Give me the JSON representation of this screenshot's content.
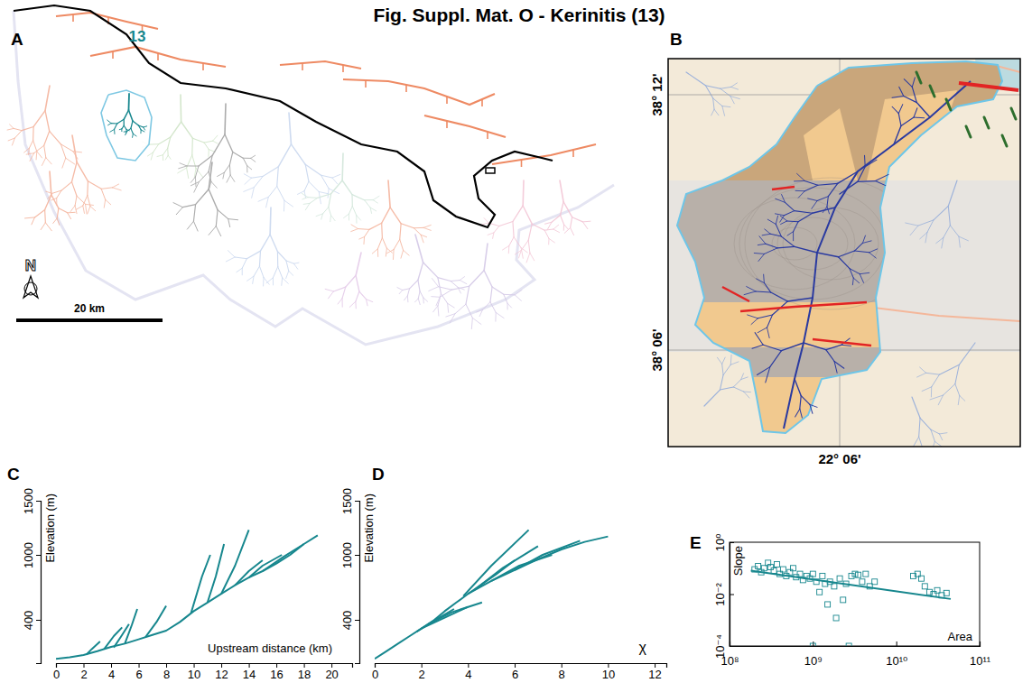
{
  "title": "Fig. Suppl. Mat. O - Kerinitis (13)",
  "chart_data": [
    {
      "type": "map",
      "panel_label": "A",
      "labels": {
        "basin": "13",
        "north": "N",
        "scale_bar": "20 km"
      }
    },
    {
      "type": "map",
      "panel_label": "B",
      "latitude_labels": [
        "38° 12'",
        "38° 06'"
      ],
      "longitude_labels": [
        "22° 06'"
      ]
    },
    {
      "type": "line",
      "panel_label": "C",
      "x_label": "Upstream distance (km)",
      "y_label": "Elevation (m)",
      "color": "#17878e",
      "xlim": [
        0,
        21.5
      ],
      "xticks": [
        0,
        2,
        4,
        6,
        8,
        10,
        12,
        14,
        16,
        18,
        20
      ],
      "ylim": [
        0,
        1500
      ],
      "yticks": [
        400,
        1000,
        1500
      ],
      "series": [
        {
          "x": [
            0,
            1,
            2,
            3,
            4,
            5,
            6,
            7,
            8,
            9,
            10,
            11,
            12,
            13,
            14,
            15,
            16,
            17,
            18,
            19
          ],
          "values": [
            40,
            55,
            75,
            110,
            150,
            180,
            220,
            260,
            300,
            380,
            480,
            560,
            640,
            720,
            790,
            850,
            920,
            1000,
            1100,
            1180
          ]
        },
        {
          "x": [
            2.2,
            2.6,
            3.2
          ],
          "values": [
            78,
            130,
            200
          ]
        },
        {
          "x": [
            3.5,
            4.2,
            4.8
          ],
          "values": [
            130,
            250,
            330
          ]
        },
        {
          "x": [
            4.2,
            4.8,
            5.3
          ],
          "values": [
            145,
            260,
            360
          ]
        },
        {
          "x": [
            5,
            5.5,
            5.9
          ],
          "values": [
            180,
            350,
            500
          ]
        },
        {
          "x": [
            6.5,
            7.3,
            8.0
          ],
          "values": [
            240,
            380,
            530
          ]
        },
        {
          "x": [
            9.8,
            10.6,
            11.2
          ],
          "values": [
            460,
            800,
            1000
          ]
        },
        {
          "x": [
            11,
            11.6,
            12.2
          ],
          "values": [
            560,
            800,
            1100
          ]
        },
        {
          "x": [
            12,
            13,
            14
          ],
          "values": [
            640,
            900,
            1230
          ]
        },
        {
          "x": [
            13,
            14,
            15
          ],
          "values": [
            720,
            850,
            950
          ]
        },
        {
          "x": [
            14,
            15,
            16.4
          ],
          "values": [
            790,
            900,
            1000
          ]
        },
        {
          "x": [
            15,
            16.5,
            18
          ],
          "values": [
            850,
            980,
            1100
          ]
        }
      ]
    },
    {
      "type": "line",
      "panel_label": "D",
      "x_label": "χ",
      "y_label": "Elevation (m)",
      "color": "#17878e",
      "xlim": [
        0,
        12.5
      ],
      "xticks": [
        0,
        2,
        4,
        6,
        8,
        10,
        12
      ],
      "ylim": [
        0,
        1500
      ],
      "yticks": [
        400,
        1000,
        1500
      ],
      "series": [
        {
          "x": [
            0,
            0.5,
            1,
            1.5,
            2,
            2.5,
            3,
            3.5,
            4,
            5,
            6,
            7,
            8,
            9,
            10
          ],
          "values": [
            40,
            110,
            180,
            250,
            320,
            390,
            480,
            560,
            640,
            760,
            860,
            960,
            1050,
            1120,
            1170
          ]
        },
        {
          "x": [
            1.8,
            2.6,
            3.4
          ],
          "values": [
            290,
            400,
            500
          ]
        },
        {
          "x": [
            2.0,
            3.0,
            4.0
          ],
          "values": [
            320,
            420,
            520
          ]
        },
        {
          "x": [
            2.3,
            3.3,
            4.6
          ],
          "values": [
            360,
            470,
            560
          ]
        },
        {
          "x": [
            3.8,
            5.0,
            6.6
          ],
          "values": [
            620,
            900,
            1230
          ]
        },
        {
          "x": [
            4.3,
            5.5,
            7.0
          ],
          "values": [
            680,
            880,
            1080
          ]
        },
        {
          "x": [
            5.0,
            6.2,
            7.6
          ],
          "values": [
            760,
            900,
            1000
          ]
        },
        {
          "x": [
            6.0,
            7.2,
            8.8
          ],
          "values": [
            860,
            1000,
            1130
          ]
        },
        {
          "x": [
            4.0,
            5.2,
            6.0
          ],
          "values": [
            640,
            820,
            950
          ]
        }
      ]
    },
    {
      "type": "scatter",
      "panel_label": "E",
      "log": true,
      "x_label": "Area",
      "y_label": "Slope",
      "color": "#17878e",
      "xlim": [
        100000000.0,
        100000000000.0
      ],
      "xticks": [
        {
          "value": 100000000.0,
          "label": "10⁸"
        },
        {
          "value": 1000000000.0,
          "label": "10⁹"
        },
        {
          "value": 10000000000.0,
          "label": "10¹⁰"
        },
        {
          "value": 100000000000.0,
          "label": "10¹¹"
        }
      ],
      "ylim": [
        0.0001,
        1
      ],
      "yticks": [
        {
          "value": 0.0001,
          "label": "10⁻⁴"
        },
        {
          "value": 0.01,
          "label": "10⁻²"
        },
        {
          "value": 1,
          "label": "10⁰"
        }
      ],
      "series": [
        {
          "type": "scatter",
          "marker": "square",
          "x": [
            200000000.0,
            220000000.0,
            240000000.0,
            260000000.0,
            290000000.0,
            310000000.0,
            340000000.0,
            370000000.0,
            400000000.0,
            440000000.0,
            480000000.0,
            530000000.0,
            580000000.0,
            630000000.0,
            700000000.0,
            760000000.0,
            840000000.0,
            920000000.0,
            1000000000.0,
            1100000000.0,
            1200000000.0,
            1300000000.0,
            1400000000.0,
            1500000000.0,
            1600000000.0,
            1800000000.0,
            1900000000.0,
            2100000000.0,
            2300000000.0,
            2500000000.0,
            2700000000.0,
            2900000000.0,
            3200000000.0,
            3500000000.0,
            3900000000.0,
            4300000000.0,
            4800000000.0,
            5500000000.0,
            1000000000.0,
            16000000000.0,
            18000000000.0,
            20000000000.0,
            22000000000.0,
            25000000000.0,
            28000000000.0,
            31000000000.0,
            35000000000.0,
            40000000000.0
          ],
          "values": [
            0.09,
            0.12,
            0.07,
            0.1,
            0.16,
            0.11,
            0.08,
            0.14,
            0.06,
            0.09,
            0.05,
            0.07,
            0.1,
            0.045,
            0.06,
            0.035,
            0.05,
            0.04,
            0.06,
            0.03,
            0.012,
            0.05,
            0.025,
            0.004,
            0.03,
            0.02,
            0.0012,
            0.04,
            0.006,
            0.025,
            0.0001,
            0.05,
            0.06,
            0.055,
            0.03,
            0.06,
            0.02,
            0.03,
            0.0001,
            0.05,
            0.06,
            0.04,
            0.02,
            0.012,
            0.01,
            0.014,
            0.009,
            0.011
          ]
        },
        {
          "type": "line",
          "x": [
            180000000.0,
            45000000000.0
          ],
          "values": [
            0.08,
            0.0065
          ]
        }
      ]
    }
  ]
}
